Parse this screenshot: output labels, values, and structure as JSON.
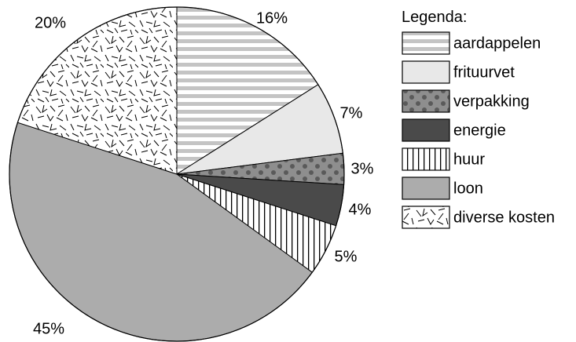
{
  "chart_data": {
    "type": "pie",
    "legend_title": "Legenda:",
    "legend_position": "right",
    "slices": [
      {
        "label": "aardappelen",
        "value": 16,
        "display": "16%",
        "pattern": "horizontal-stripes"
      },
      {
        "label": "frituurvet",
        "value": 7,
        "display": "7%",
        "pattern": "solid-light-gray"
      },
      {
        "label": "verpakking",
        "value": 3,
        "display": "3%",
        "pattern": "dots-on-gray"
      },
      {
        "label": "energie",
        "value": 4,
        "display": "4%",
        "pattern": "solid-dark-gray"
      },
      {
        "label": "huur",
        "value": 5,
        "display": "5%",
        "pattern": "vertical-stripes"
      },
      {
        "label": "loon",
        "value": 45,
        "display": "45%",
        "pattern": "solid-mid-gray"
      },
      {
        "label": "diverse kosten",
        "value": 20,
        "display": "20%",
        "pattern": "random-strokes"
      }
    ],
    "colors": {
      "stroke": "#000000",
      "light_gray": "#e8e8e8",
      "mid_gray": "#acacac",
      "dark_gray": "#4a4a4a",
      "dots_bg": "#8e8e8e",
      "dots_fg": "#5a5a5a",
      "stripe": "#c4c4c4"
    }
  }
}
